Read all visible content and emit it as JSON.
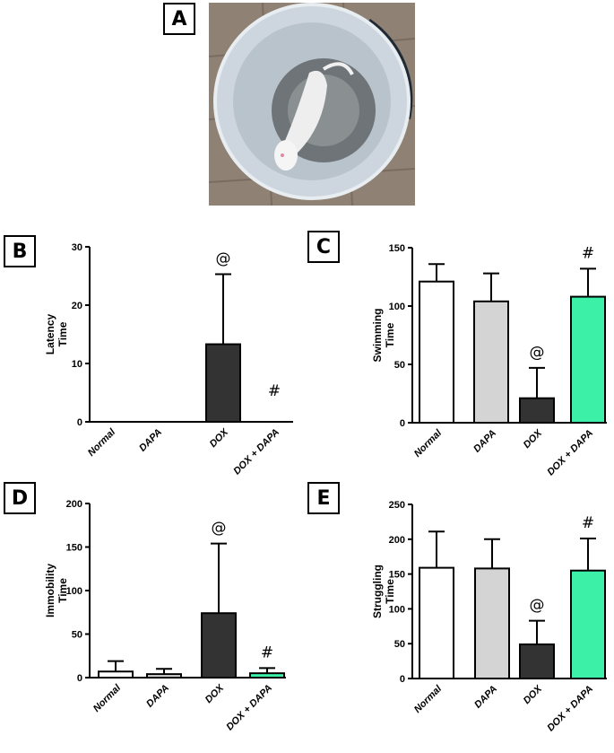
{
  "panels": {
    "a": "A",
    "b": "B",
    "c": "C",
    "d": "D",
    "e": "E"
  },
  "colors": {
    "normal": "#ffffff",
    "dapa": "#d4d4d4",
    "dox": "#333333",
    "dox_dapa": "#3df0a8"
  },
  "chart_data": [
    {
      "id": "B",
      "type": "bar",
      "categories": [
        "Normal",
        "DAPA",
        "DOX",
        "DOX + DAPA"
      ],
      "ylabel": "Latency\nTime",
      "ylim": [
        0,
        30
      ],
      "yticks": [
        0,
        10,
        20,
        30
      ],
      "values": [
        0,
        0,
        13.3,
        0
      ],
      "errors": [
        0,
        0,
        12,
        0
      ],
      "annotations": [
        "",
        "",
        "@",
        "#"
      ]
    },
    {
      "id": "C",
      "type": "bar",
      "categories": [
        "Normal",
        "DAPA",
        "DOX",
        "DOX + DAPA"
      ],
      "ylabel": "Swimming\nTime",
      "ylim": [
        0,
        150
      ],
      "yticks": [
        0,
        50,
        100,
        150
      ],
      "values": [
        121,
        104,
        21,
        108
      ],
      "errors": [
        15,
        24,
        26,
        24
      ],
      "annotations": [
        "",
        "",
        "@",
        "#"
      ]
    },
    {
      "id": "D",
      "type": "bar",
      "categories": [
        "Normal",
        "DAPA",
        "DOX",
        "DOX + DAPA"
      ],
      "ylabel": "Immobility\nTime",
      "ylim": [
        0,
        200
      ],
      "yticks": [
        0,
        50,
        100,
        150,
        200
      ],
      "values": [
        7,
        4,
        74,
        5
      ],
      "errors": [
        12,
        6,
        80,
        6
      ],
      "annotations": [
        "",
        "",
        "@",
        "#"
      ]
    },
    {
      "id": "E",
      "type": "bar",
      "categories": [
        "Normal",
        "DAPA",
        "DOX",
        "DOX + DAPA"
      ],
      "ylabel": "Struggling\nTime",
      "ylim": [
        0,
        250
      ],
      "yticks": [
        0,
        50,
        100,
        150,
        200,
        250
      ],
      "values": [
        159,
        158,
        49,
        155
      ],
      "errors": [
        52,
        42,
        34,
        46
      ],
      "annotations": [
        "",
        "",
        "@",
        "#"
      ]
    }
  ]
}
